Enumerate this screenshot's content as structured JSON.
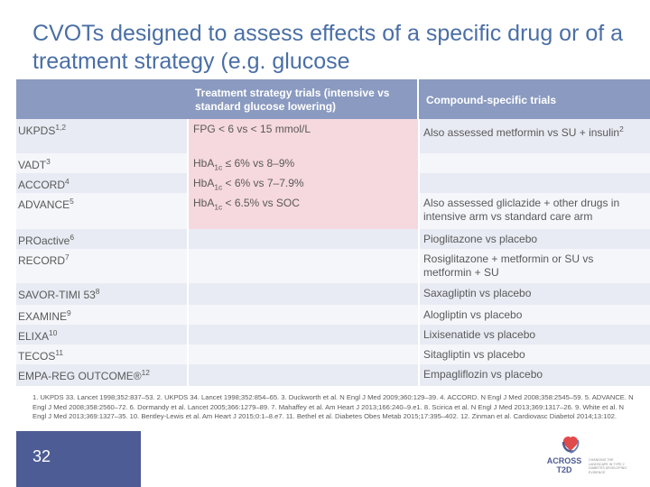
{
  "slide": {
    "title": "CVOTs designed to assess effects of a specific drug or of a treatment strategy (e.g. glucose",
    "page_number": "32"
  },
  "table": {
    "headers": {
      "col1": "",
      "col2": "Treatment strategy trials (intensive vs standard glucose lowering)",
      "col3": "Compound-specific trials"
    },
    "rows": [
      {
        "trial": "UKPDS",
        "ref": "1,2",
        "strategy": "FPG < 6 vs < 15 mmol/L",
        "compound": "Also assessed metformin vs SU + insulin",
        "compound_ref": "2"
      },
      {
        "trial": "VADT",
        "ref": "3",
        "strategy_prefix": "HbA",
        "strategy_sub": "1c",
        "strategy_suffix": " ≤ 6% vs 8–9%",
        "compound": ""
      },
      {
        "trial": "ACCORD",
        "ref": "4",
        "strategy_prefix": "HbA",
        "strategy_sub": "1c",
        "strategy_suffix": " < 6% vs 7–7.9%",
        "compound": ""
      },
      {
        "trial": "ADVANCE",
        "ref": "5",
        "strategy_prefix": "HbA",
        "strategy_sub": "1c",
        "strategy_suffix": " < 6.5% vs SOC",
        "compound": "Also assessed gliclazide + other drugs in intensive arm vs standard care arm"
      },
      {
        "trial": "PROactive",
        "ref": "6",
        "compound": "Pioglitazone vs placebo"
      },
      {
        "trial": "RECORD",
        "ref": "7",
        "compound": "Rosiglitazone + metformin or SU vs metformin + SU"
      },
      {
        "trial": "SAVOR-TIMI 53",
        "ref": "8",
        "compound": "Saxagliptin vs placebo"
      },
      {
        "trial": "EXAMINE",
        "ref": "9",
        "compound": "Alogliptin vs placebo"
      },
      {
        "trial": "ELIXA",
        "ref": "10",
        "compound": "Lixisenatide vs placebo"
      },
      {
        "trial": "TECOS",
        "ref": "11",
        "compound": "Sitagliptin vs placebo"
      },
      {
        "trial": "EMPA-REG OUTCOME®",
        "ref": "12",
        "compound": "Empagliflozin vs placebo"
      }
    ]
  },
  "references": "1. UKPDS 33. Lancet 1998;352:837–53. 2. UKPDS 34. Lancet 1998;352:854–65. 3. Duckworth et al. N Engl J Med 2009;360:129–39. 4. ACCORD. N Engl J Med 2008;358:2545–59. 5. ADVANCE. N Engl J Med 2008;358:2560–72. 6. Dormandy et al. Lancet 2005;366:1279–89. 7. Mahaffey et al. Am Heart J 2013;166:240–9.e1. 8. Scirica et al. N Engl J Med 2013;369:1317–26. 9. White et al. N Engl J Med 2013;369:1327–35. 10. Bentley-Lewis et al. Am Heart J 2015;0:1–8.e7. 11. Bethel et al. Diabetes Obes Metab 2015;17:395–402. 12. Zinman et al. Cardiovasc Diabetol 2014;13:102.",
  "logo": {
    "name_line1": "ACROSS",
    "name_line2": "T2D",
    "tagline": "CHANGING THE LANDSCAPE IN TYPE 2 DIABETES DEVELOPING EVIDENCE"
  },
  "colors": {
    "title": "#4a6fa5",
    "header_bg": "#8a9ac0",
    "row_even": "#e8ebf3",
    "row_odd": "#f4f6fa",
    "highlight": "#f6d9de",
    "footer": "#4d5c94"
  }
}
